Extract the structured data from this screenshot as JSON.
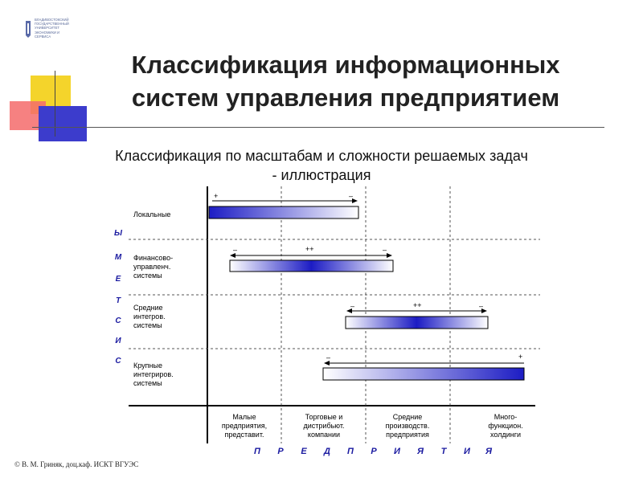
{
  "logo": {
    "text": "Владивостокский государственный университет экономики и сервиса",
    "lines": [
      "ВЛАДИВОСТОКСКИЙ",
      "ГОСУДАРСТВЕННЫЙ",
      "УНИВЕРСИТЕТ",
      "ЭКОНОМИКИ И",
      "СЕРВИСА"
    ]
  },
  "title": "Классификация информационных систем управления предприятием",
  "title_lines": [
    "Классификация информационных",
    "систем управления предприятием"
  ],
  "subtitle_lines": [
    "Классификация по масштабам и сложности решаемых задач",
    "- иллюстрация"
  ],
  "colors": {
    "accent_blue": "#1a1aa0",
    "bar_blue": "#1c1cc4",
    "deco_yellow": "#f4d42b",
    "deco_red": "#f56b6b",
    "deco_blue": "#3c3ccc"
  },
  "rows": [
    {
      "id": "local",
      "lines": [
        "Локальные"
      ]
    },
    {
      "id": "fin",
      "lines": [
        "Финансово-",
        "управленч.",
        "системы"
      ]
    },
    {
      "id": "mid",
      "lines": [
        "Средние",
        "интегров.",
        "системы"
      ]
    },
    {
      "id": "large",
      "lines": [
        "Крупные",
        "интегриров.",
        "системы"
      ]
    }
  ],
  "columns": [
    {
      "id": "small",
      "lines": [
        "Малые",
        "предприятия,",
        "представит."
      ]
    },
    {
      "id": "trade",
      "lines": [
        "Торговые и",
        "дистрибьют.",
        "компании"
      ]
    },
    {
      "id": "midprod",
      "lines": [
        "Средние",
        "производств.",
        "предприятия"
      ]
    },
    {
      "id": "multi",
      "lines": [
        "Много-",
        "функцион.",
        "холдинги"
      ]
    }
  ],
  "vertical_word": [
    "С",
    "И",
    "С",
    "Т",
    "Е",
    "М",
    "Ы"
  ],
  "horizontal_word": [
    "П",
    "Р",
    "Е",
    "Д",
    "П",
    "Р",
    "И",
    "Я",
    "Т",
    "И",
    "Я"
  ],
  "bars": [
    {
      "id": "bar-local",
      "gradient": "dark-to-light",
      "signs": {
        "left": "+",
        "right": "–"
      }
    },
    {
      "id": "bar-fin",
      "gradient": "light-dark-light",
      "signs": {
        "left": "–",
        "center": "++",
        "right": "–"
      }
    },
    {
      "id": "bar-mid",
      "gradient": "light-dark-light",
      "signs": {
        "left": "–",
        "center": "++",
        "right": "–"
      }
    },
    {
      "id": "bar-large",
      "gradient": "light-to-dark",
      "signs": {
        "left": "–",
        "right": "+"
      }
    }
  ],
  "footer": "© В. М. Гриняк, доц.каф. ИСКТ ВГУЭС"
}
